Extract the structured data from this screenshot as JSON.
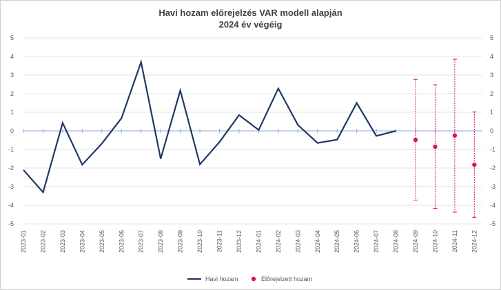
{
  "chart_data": {
    "type": "line",
    "title_line1": "Havi hozam előrejelzés VAR modell alapján",
    "title_line2": "2024 év végéig",
    "ylim": [
      -5,
      5
    ],
    "yticks": [
      5,
      4,
      3,
      2,
      1,
      0,
      -1,
      -2,
      -3,
      -4,
      -5
    ],
    "grid": "horizontal",
    "legend_position": "bottom",
    "categories": [
      "2023-01",
      "2023-02",
      "2023-03",
      "2023-04",
      "2023-05",
      "2023-06",
      "2023-07",
      "2023-08",
      "2023-09",
      "2023-10",
      "2023-11",
      "2023-12",
      "2024-01",
      "2024-02",
      "2024-03",
      "2024-04",
      "2024-05",
      "2024-06",
      "2024-07",
      "2024-08",
      "2024-09",
      "2024-10",
      "2024-11",
      "2024-12"
    ],
    "series": [
      {
        "name": "Havi hozam",
        "kind": "line",
        "color": "#1f3864",
        "values": [
          -2.1,
          -3.3,
          0.43,
          -1.82,
          -0.68,
          0.68,
          3.7,
          -1.5,
          2.17,
          -1.8,
          -0.6,
          0.85,
          0.05,
          2.28,
          0.32,
          -0.65,
          -0.47,
          1.5,
          -0.27,
          0.0,
          null,
          null,
          null,
          null
        ]
      },
      {
        "name": "Előrejelzett hozam",
        "kind": "point",
        "color": "#e0115f",
        "values": [
          null,
          null,
          null,
          null,
          null,
          null,
          null,
          null,
          null,
          null,
          null,
          null,
          null,
          null,
          null,
          null,
          null,
          null,
          null,
          null,
          -0.48,
          -0.85,
          -0.25,
          -1.82
        ],
        "error_upper": [
          null,
          null,
          null,
          null,
          null,
          null,
          null,
          null,
          null,
          null,
          null,
          null,
          null,
          null,
          null,
          null,
          null,
          null,
          null,
          null,
          2.77,
          2.48,
          3.85,
          1.02
        ],
        "error_lower": [
          null,
          null,
          null,
          null,
          null,
          null,
          null,
          null,
          null,
          null,
          null,
          null,
          null,
          null,
          null,
          null,
          null,
          null,
          null,
          null,
          -3.72,
          -4.17,
          -4.37,
          -4.65
        ]
      }
    ]
  }
}
